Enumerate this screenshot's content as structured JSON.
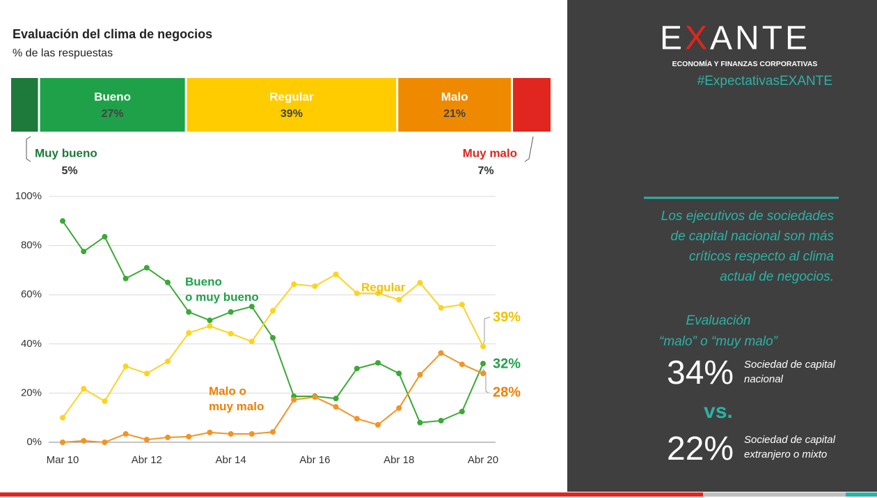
{
  "header": {
    "title": "Evaluación del clima de negocios",
    "subtitle": "% de las respuestas"
  },
  "chart_data": [
    {
      "type": "stacked-bar",
      "series": [
        {
          "name": "Muy bueno",
          "color": "#1d7a3a",
          "values": [
            5
          ],
          "value_labels": [
            "5%"
          ]
        },
        {
          "name": "Bueno",
          "color": "#1fa149",
          "values": [
            27
          ],
          "value_labels": [
            "27%"
          ]
        },
        {
          "name": "Regular",
          "color": "#ffcc00",
          "values": [
            39
          ],
          "value_labels": [
            "39%"
          ]
        },
        {
          "name": "Malo",
          "color": "#ef8a00",
          "values": [
            21
          ],
          "value_labels": [
            "21%"
          ]
        },
        {
          "name": "Muy malo",
          "color": "#e0261e",
          "values": [
            7
          ],
          "value_labels": [
            "7%"
          ]
        }
      ]
    },
    {
      "type": "line",
      "categories": [
        "Mar 10",
        null,
        null,
        null,
        "Abr 12",
        null,
        null,
        null,
        "Abr 14",
        null,
        null,
        null,
        "Abr 16",
        null,
        null,
        null,
        "Abr 18",
        null,
        null,
        null,
        "Abr 20"
      ],
      "ylim": [
        0,
        100
      ],
      "yticks": [
        {
          "value": 0,
          "label": "0%"
        },
        {
          "value": 20,
          "label": "20%"
        },
        {
          "value": 40,
          "label": "40%"
        },
        {
          "value": 60,
          "label": "60%"
        },
        {
          "value": 80,
          "label": "80%"
        },
        {
          "value": 100,
          "label": "100%"
        }
      ],
      "grid": true,
      "series": [
        {
          "name": "Bueno\no muy bueno",
          "color": "#3aa935",
          "values": [
            90,
            77.6,
            83.6,
            66.6,
            71,
            65,
            53,
            49.6,
            53,
            55.2,
            42.5,
            18.7,
            18.7,
            17.8,
            30,
            32.3,
            28,
            8,
            8.8,
            12.5,
            32
          ],
          "value_labels": [
            null,
            null,
            null,
            null,
            null,
            null,
            null,
            null,
            null,
            null,
            null,
            null,
            null,
            null,
            null,
            null,
            null,
            null,
            null,
            null,
            "32%"
          ]
        },
        {
          "name": "Regular",
          "color": "#ffd21f",
          "values": [
            10,
            21.8,
            16.7,
            30.9,
            28,
            32.9,
            44.5,
            47.3,
            44.2,
            41,
            53.5,
            64.3,
            63.5,
            68.3,
            60.6,
            60.6,
            58,
            64.9,
            54.7,
            56,
            39
          ],
          "value_labels": [
            null,
            null,
            null,
            null,
            null,
            null,
            null,
            null,
            null,
            null,
            null,
            null,
            null,
            null,
            null,
            null,
            null,
            null,
            null,
            null,
            "39%"
          ]
        },
        {
          "name": "Malo o\nmuy malo",
          "color": "#f39325",
          "values": [
            0,
            0.6,
            0,
            3.4,
            1.1,
            2,
            2.3,
            4,
            3.4,
            3.4,
            4.2,
            17.3,
            18.4,
            14.4,
            9.6,
            7.1,
            13.9,
            27.5,
            36.3,
            31.7,
            28
          ],
          "value_labels": [
            null,
            null,
            null,
            null,
            null,
            null,
            null,
            null,
            null,
            null,
            null,
            null,
            null,
            null,
            null,
            null,
            null,
            null,
            null,
            null,
            "28%"
          ]
        }
      ]
    }
  ],
  "panel": {
    "logo": "EXANTE",
    "logo_tagline": "ECONOMÍA Y FINANZAS CORPORATIVAS",
    "hashtag": "#ExpectativasEXANTE",
    "statement": "Los ejecutivos de sociedades\nde capital nacional son más\ncríticos respecto al clima\nactual de negocios.",
    "eval_title": "Evaluación\n“malo” o “muy malo”",
    "comparison": [
      {
        "value": "34%",
        "caption": "Sociedad de capital\nnacional"
      },
      {
        "value": "22%",
        "caption": "Sociedad de capital\nextranjero o mixto"
      }
    ],
    "vs": "vs."
  }
}
